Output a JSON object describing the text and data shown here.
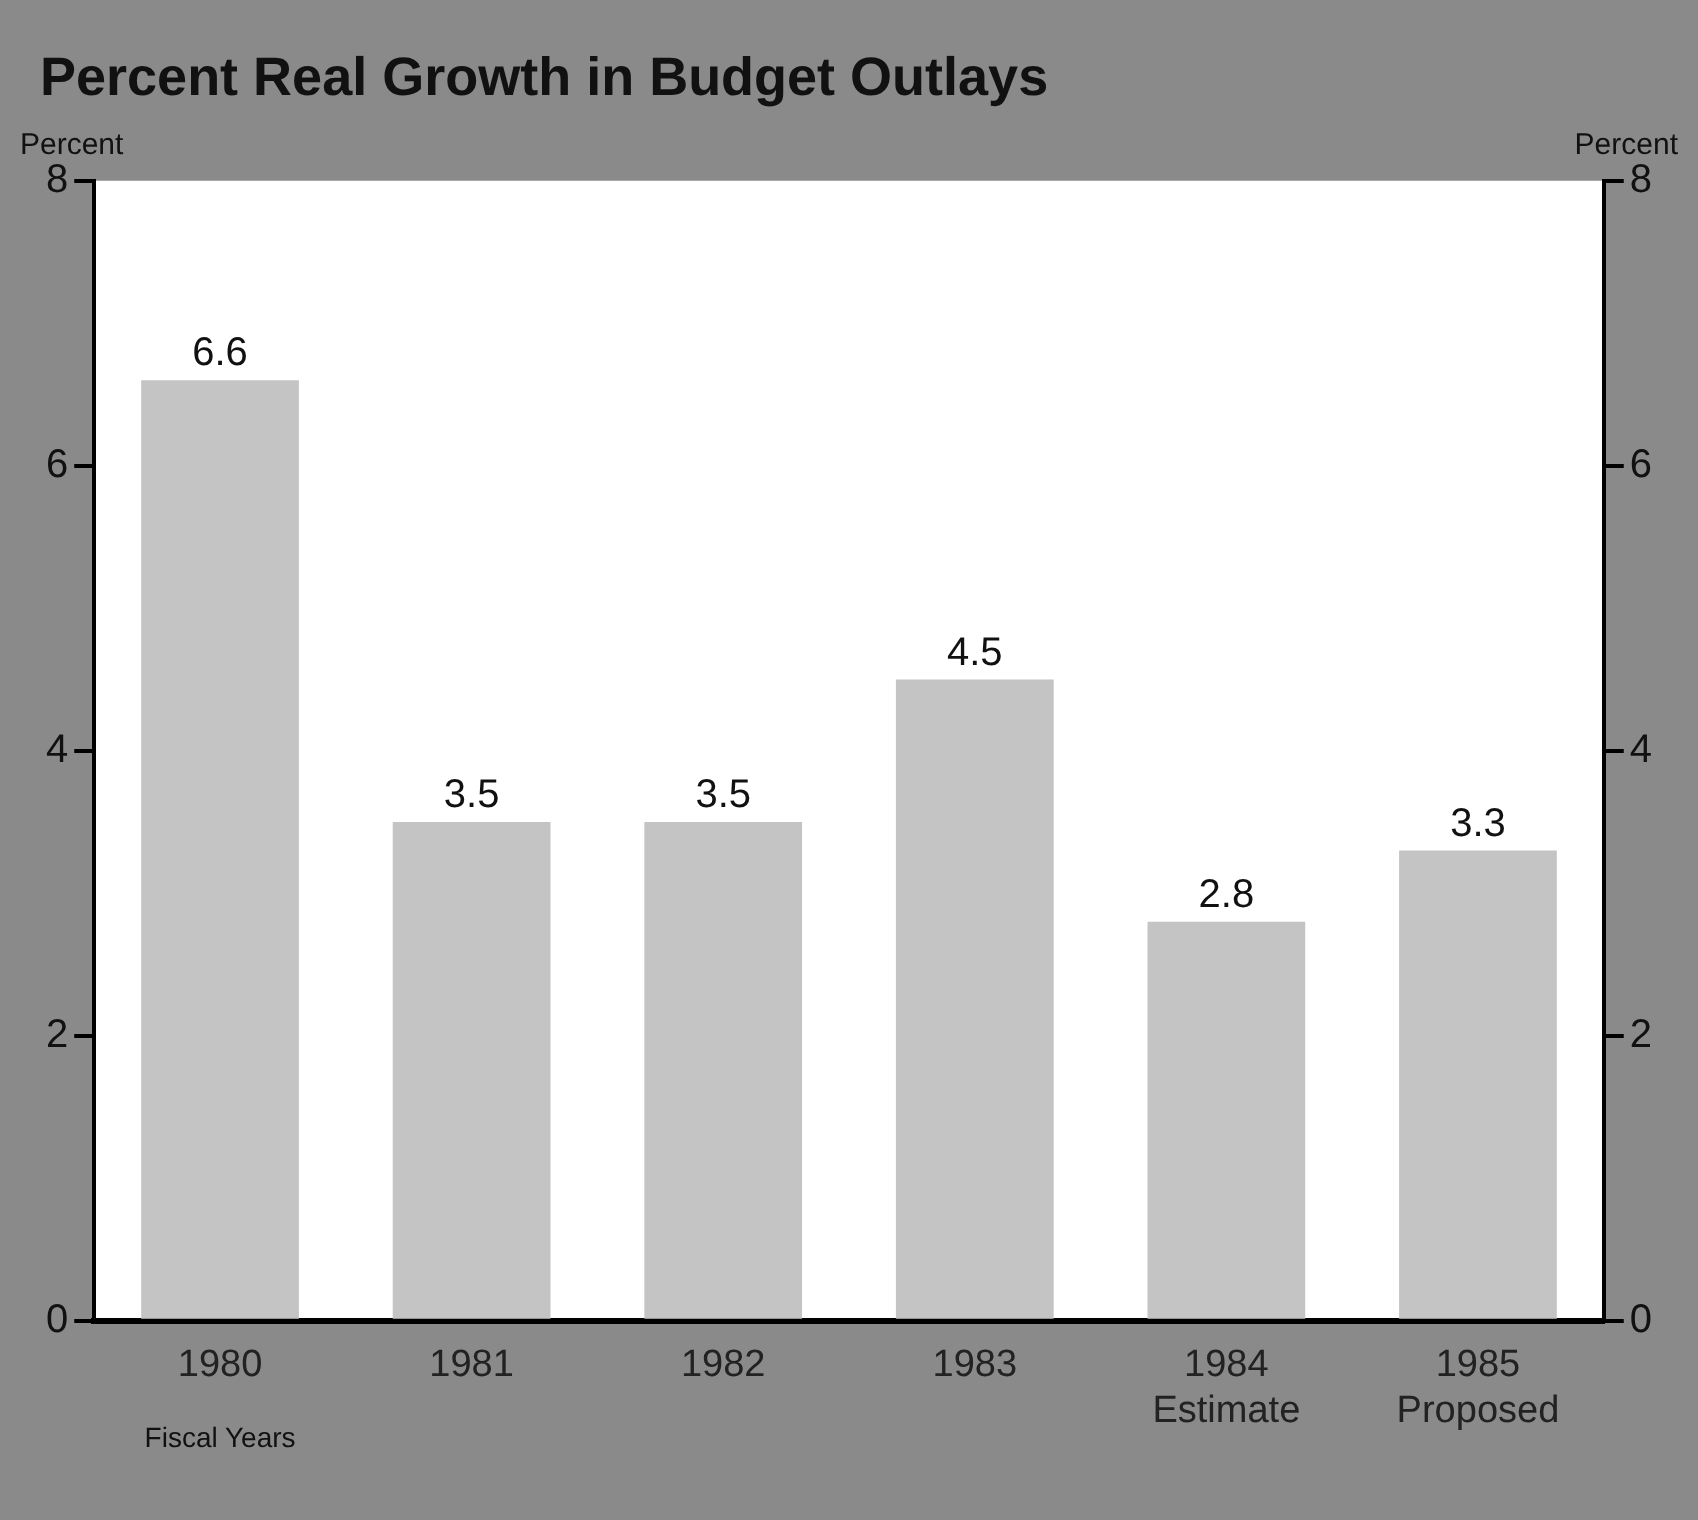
{
  "chart_data": {
    "type": "bar",
    "title": "Percent Real Growth in Budget Outlays",
    "ylabel": "Percent",
    "y2label": "Percent",
    "xlabel": "Fiscal Years",
    "categories": [
      "1980",
      "1981",
      "1982",
      "1983",
      "1984\nEstimate",
      "1985\nProposed"
    ],
    "values": [
      6.6,
      3.5,
      3.5,
      4.5,
      2.8,
      3.3
    ],
    "color": "#c4c4c4",
    "ylim": [
      0,
      8
    ],
    "yticks": [
      0,
      2,
      4,
      6,
      8
    ],
    "y2lim": [
      0,
      8
    ],
    "y2ticks": [
      0,
      2,
      4,
      6,
      8
    ],
    "grid": false,
    "legend": false,
    "data_labels": true
  }
}
